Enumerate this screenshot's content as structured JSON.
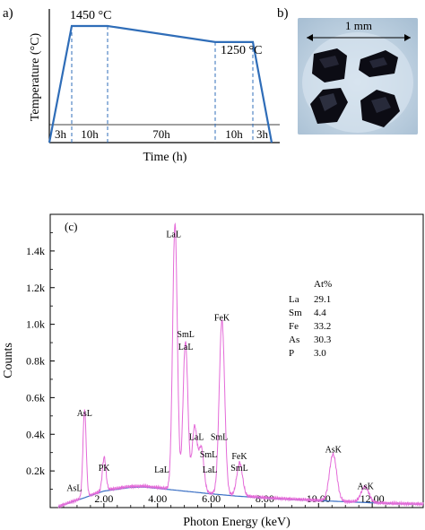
{
  "panel_a": {
    "label": "a)",
    "chart_data": {
      "type": "line",
      "ylabel": "Temperature (°C)",
      "xlabel": "Time (h)",
      "segments": [
        "3h",
        "10h",
        "70h",
        "10h",
        "3h"
      ],
      "annotations": [
        "1450 °C",
        "1250 °C"
      ],
      "x": [
        0,
        3,
        13,
        83,
        93,
        96
      ],
      "y": [
        0,
        1450,
        1450,
        1250,
        1250,
        0
      ]
    }
  },
  "panel_b": {
    "label": "b)",
    "scale_label": "1 mm"
  },
  "panel_c": {
    "label": "(c)",
    "chart_data": {
      "type": "line",
      "xlabel": "Photon Energy (keV)",
      "ylabel": "Counts",
      "xlim": [
        0,
        13.9
      ],
      "ylim": [
        0,
        1600
      ],
      "xticks": [
        "2.00",
        "4.00",
        "6.00",
        "8.00",
        "10.00",
        "12.00"
      ],
      "yticks": [
        "0.2k",
        "0.4k",
        "0.6k",
        "0.8k",
        "1.0k",
        "1.2k",
        "1.4k"
      ],
      "xtick_values": [
        2,
        4,
        6,
        8,
        10,
        12
      ],
      "ytick_values": [
        200,
        400,
        600,
        800,
        1000,
        1200,
        1400
      ],
      "peaks": [
        {
          "label": "AsL",
          "energy": 1.28,
          "counts": 480
        },
        {
          "label": "PK",
          "energy": 2.01,
          "counts": 180
        },
        {
          "label": "LaL",
          "energy": 4.65,
          "counts": 1450
        },
        {
          "label": "SmL LaL",
          "energy": 5.04,
          "counts": 810
        },
        {
          "label": "LaL",
          "energy": 5.38,
          "counts": 350
        },
        {
          "label": "SmL",
          "energy": 5.63,
          "counts": 240
        },
        {
          "label": "FeK",
          "energy": 6.4,
          "counts": 950
        },
        {
          "label": "FeK SmL",
          "energy": 7.06,
          "counts": 180
        },
        {
          "label": "AsK",
          "energy": 10.54,
          "counts": 255
        },
        {
          "label": "AsK",
          "energy": 11.73,
          "counts": 85
        }
      ],
      "background": {
        "energy": [
          0.3,
          1,
          2,
          3,
          3.5,
          4,
          5,
          6,
          7,
          8,
          9,
          10,
          11,
          12,
          13,
          13.9
        ],
        "counts": [
          5,
          40,
          90,
          110,
          112,
          105,
          90,
          75,
          62,
          52,
          44,
          38,
          32,
          26,
          21,
          18
        ]
      },
      "peak_labels": [
        {
          "text": "AsL",
          "energy": 0.9,
          "counts": 90
        },
        {
          "text": "AsL",
          "energy": 1.28,
          "counts": 500
        },
        {
          "text": "PK",
          "energy": 2.01,
          "counts": 200
        },
        {
          "text": "LaL",
          "energy": 4.6,
          "counts": 1475
        },
        {
          "text": "LaL",
          "energy": 4.16,
          "counts": 190
        },
        {
          "text": "SmL",
          "energy": 5.05,
          "counts": 930
        },
        {
          "text": "LaL",
          "energy": 5.05,
          "counts": 860
        },
        {
          "text": "LaL",
          "energy": 5.45,
          "counts": 370
        },
        {
          "text": "SmL",
          "energy": 5.9,
          "counts": 275
        },
        {
          "text": "LaL",
          "energy": 5.95,
          "counts": 190
        },
        {
          "text": "SmL",
          "energy": 6.3,
          "counts": 370
        },
        {
          "text": "FeK",
          "energy": 6.4,
          "counts": 1020
        },
        {
          "text": "FeK",
          "energy": 7.05,
          "counts": 265
        },
        {
          "text": "SmL",
          "energy": 7.05,
          "counts": 200
        },
        {
          "text": "AsK",
          "energy": 10.55,
          "counts": 300
        },
        {
          "text": "AsK",
          "energy": 11.75,
          "counts": 100
        }
      ],
      "composition": {
        "header": "At%",
        "rows": [
          {
            "el": "La",
            "val": "29.1"
          },
          {
            "el": "Sm",
            "val": "4.4"
          },
          {
            "el": "Fe",
            "val": "33.2"
          },
          {
            "el": "As",
            "val": "30.3"
          },
          {
            "el": "P",
            "val": "3.0"
          }
        ]
      }
    }
  }
}
